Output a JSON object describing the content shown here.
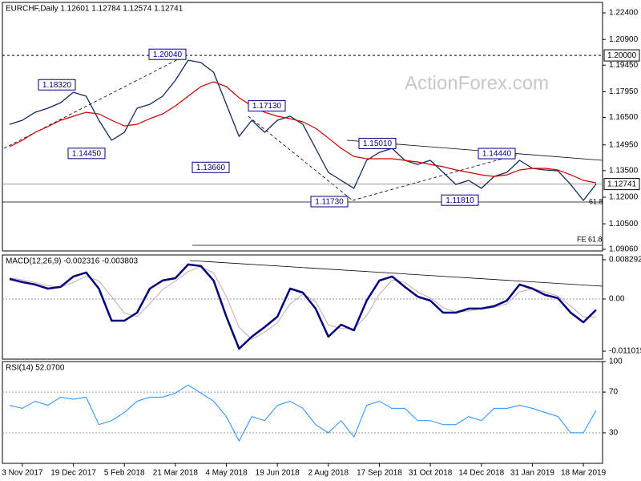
{
  "chart_data": [
    {
      "type": "price",
      "title": "EURCHF,Daily  1.12601 1.12784 1.12574 1.12741",
      "ylim": [
        1.0897,
        1.2299
      ],
      "yticks": [
        {
          "value": 1.224,
          "label": "1.22400"
        },
        {
          "value": 1.209,
          "label": "1.20900"
        },
        {
          "value": 1.1945,
          "label": "1.19450"
        },
        {
          "value": 1.1795,
          "label": "1.17950"
        },
        {
          "value": 1.165,
          "label": "1.16500"
        },
        {
          "value": 1.1495,
          "label": "1.14950"
        },
        {
          "value": 1.135,
          "label": "1.13500"
        },
        {
          "value": 1.12,
          "label": "1.12000"
        },
        {
          "value": 1.105,
          "label": "1.10500"
        },
        {
          "value": 1.0906,
          "label": "1.09060"
        }
      ],
      "series": [
        {
          "color": "#102a5c",
          "values": [
            1.1611,
            1.1634,
            1.1679,
            1.1702,
            1.1733,
            1.1792,
            1.177,
            1.1634,
            1.1521,
            1.1566,
            1.1702,
            1.1724,
            1.177,
            1.186,
            1.1973,
            1.196,
            1.1905,
            1.1724,
            1.1543,
            1.1634,
            1.1566,
            1.1634,
            1.1657,
            1.1611,
            1.1476,
            1.134,
            1.1295,
            1.125,
            1.1408,
            1.1453,
            1.1476,
            1.1408,
            1.1385,
            1.1408,
            1.134,
            1.1272,
            1.1295,
            1.125,
            1.1317,
            1.134,
            1.1408,
            1.1363,
            1.1354,
            1.1349,
            1.1272,
            1.1182,
            1.1274
          ]
        },
        {
          "color": "#d00000",
          "values": [
            1.1485,
            1.1521,
            1.1566,
            1.1598,
            1.1634,
            1.1657,
            1.1679,
            1.167,
            1.1634,
            1.1602,
            1.1611,
            1.1643,
            1.167,
            1.1715,
            1.177,
            1.1824,
            1.1851,
            1.1824,
            1.1761,
            1.1715,
            1.1679,
            1.1657,
            1.1643,
            1.1625,
            1.1589,
            1.1534,
            1.1476,
            1.143,
            1.1417,
            1.1417,
            1.1417,
            1.1408,
            1.1399,
            1.1385,
            1.1372,
            1.1354,
            1.134,
            1.1326,
            1.1317,
            1.1326,
            1.1354,
            1.1363,
            1.1363,
            1.1354,
            1.1326,
            1.1295,
            1.1281
          ]
        }
      ],
      "annotations": [
        {
          "value": 1.2004,
          "label": "1.20040"
        },
        {
          "value": 1.1832,
          "label": "1.18320"
        },
        {
          "value": 1.1445,
          "label": "1.14450"
        },
        {
          "value": 1.1366,
          "label": "1.13660"
        },
        {
          "value": 1.1713,
          "label": "1.17130"
        },
        {
          "value": 1.1501,
          "label": "1.15010"
        },
        {
          "value": 1.1444,
          "label": "1.14440"
        },
        {
          "value": 1.1173,
          "label": "1.11730"
        },
        {
          "value": 1.1181,
          "label": "1.11810"
        }
      ],
      "markers": [
        {
          "value": 1.2,
          "label": "1.20000"
        },
        {
          "value": 1.12741,
          "label": "1.12741"
        }
      ],
      "notes": [
        "61.8",
        "FE 61.8"
      ],
      "watermark": "ActionForex.com"
    },
    {
      "type": "macd",
      "title": "MACD(12,26,9) -0.002316 -0.003803",
      "ylim": [
        -0.0127,
        0.0093
      ],
      "yticks": [
        0.008292,
        {
          "value": 0,
          "label": "0.00"
        },
        -0.011015
      ],
      "series": [
        {
          "color": "#000080",
          "values": [
            0.00423,
            0.00356,
            0.00305,
            0.0022,
            0.00254,
            0.00474,
            0.00559,
            0.0022,
            -0.00457,
            -0.00457,
            -0.00288,
            0.0022,
            0.0039,
            0.0044,
            0.00728,
            0.00694,
            0.0039,
            -0.00373,
            -0.0105,
            -0.00796,
            -0.00593,
            -0.00373,
            0.0022,
            0.00135,
            -0.00203,
            -0.00796,
            -0.00542,
            -0.0066,
            -0.00034,
            0.0039,
            0.00474,
            0.00254,
            0.00051,
            -0.00034,
            -0.00288,
            -0.00288,
            -0.00203,
            -0.00203,
            -0.00152,
            -0.00034,
            0.00305,
            0.0022,
            0.00085,
            0.00017,
            -0.00288,
            -0.00491,
            -0.0023
          ]
        },
        {
          "color": "#c9a9a9",
          "values": [
            0.0045,
            0.004,
            0.0035,
            0.0028,
            0.0025,
            0.0035,
            0.0048,
            0.0038,
            0.0005,
            -0.003,
            -0.0037,
            -0.001,
            0.002,
            0.0038,
            0.0058,
            0.0068,
            0.0055,
            0.0005,
            -0.006,
            -0.0085,
            -0.007,
            -0.005,
            -0.001,
            0.001,
            -0.0005,
            -0.0055,
            -0.0062,
            -0.0063,
            -0.0035,
            0.001,
            0.004,
            0.0035,
            0.0015,
            0.0002,
            -0.0018,
            -0.0028,
            -0.0025,
            -0.0021,
            -0.0018,
            -0.001,
            0.0015,
            0.0022,
            0.0015,
            0.0006,
            -0.0015,
            -0.0038,
            -0.0038
          ]
        }
      ]
    },
    {
      "type": "rsi",
      "title": "RSI(14) 52.0700",
      "ylim": [
        0,
        100
      ],
      "yticks": [
        100,
        70,
        30
      ],
      "categories": [
        null,
        "3 Nov 2017",
        null,
        null,
        null,
        "19 Dec 2017",
        null,
        null,
        null,
        "5 Feb 2018",
        null,
        null,
        null,
        "21 Mar 2018",
        null,
        null,
        null,
        "4 May 2018",
        null,
        null,
        null,
        "19 Jun 2018",
        null,
        null,
        null,
        "2 Aug 2018",
        null,
        null,
        null,
        "17 Sep 2018",
        null,
        null,
        null,
        "31 Oct 2018",
        null,
        null,
        null,
        "14 Dec 2018",
        null,
        null,
        null,
        "31 Jan 2019",
        null,
        null,
        null,
        "18 Mar 2019",
        null
      ],
      "series": [
        {
          "color": "#1e90ff",
          "values": [
            57,
            54,
            61,
            57,
            65,
            63,
            65,
            38,
            42,
            50,
            61,
            65,
            65,
            69,
            77,
            69,
            61,
            46,
            22,
            46,
            42,
            57,
            61,
            54,
            38,
            30,
            42,
            26,
            57,
            61,
            54,
            54,
            42,
            42,
            38,
            38,
            46,
            42,
            54,
            54,
            57,
            54,
            50,
            46,
            30,
            30,
            52.07
          ]
        }
      ]
    }
  ]
}
